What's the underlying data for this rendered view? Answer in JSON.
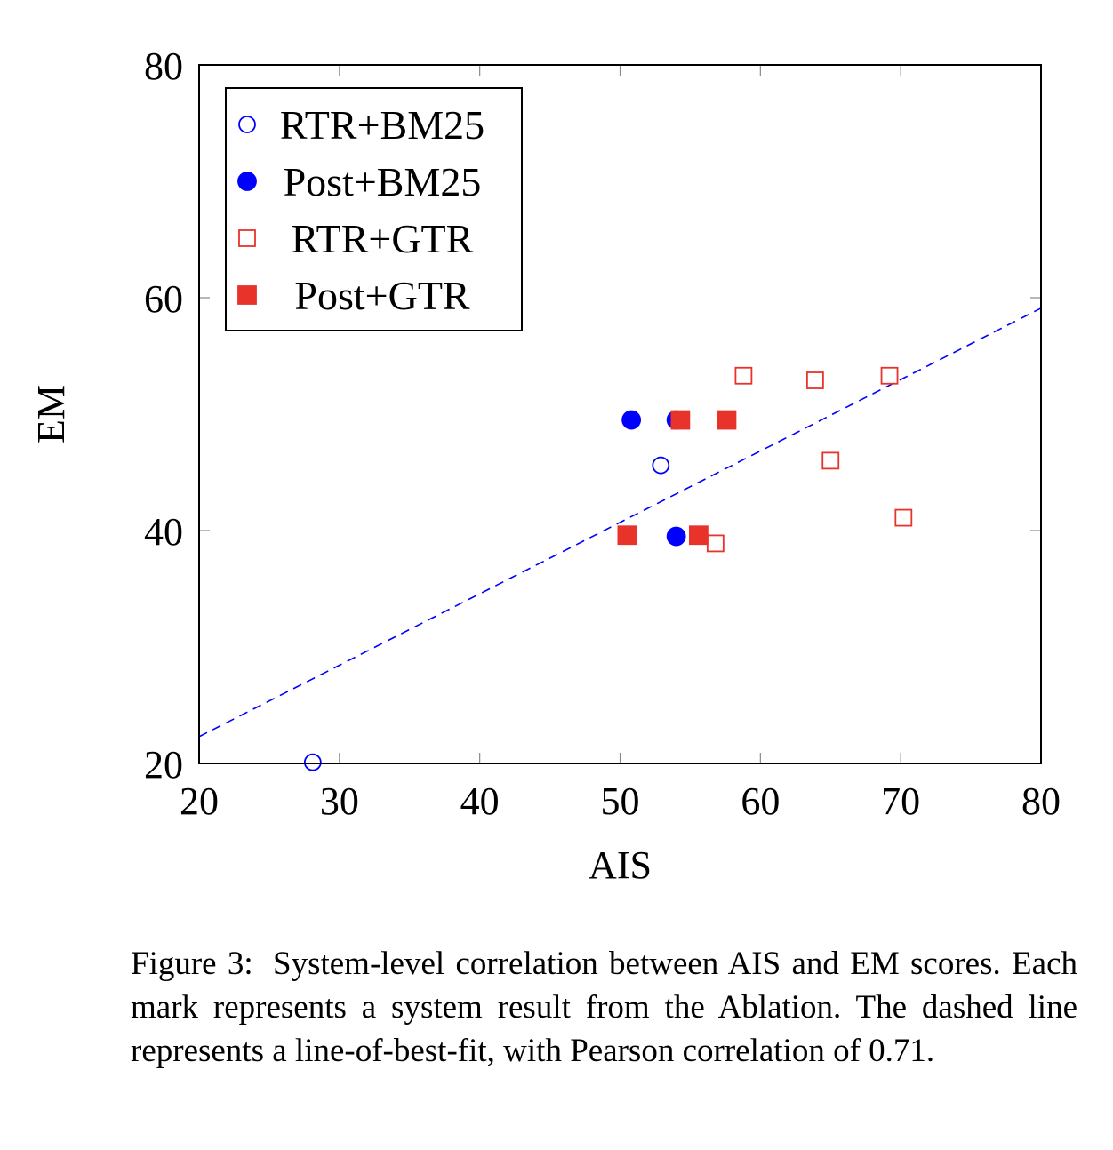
{
  "chart_data": {
    "type": "scatter",
    "xlabel": "AIS",
    "ylabel": "EM",
    "xlim": [
      20,
      80
    ],
    "ylim": [
      20,
      80
    ],
    "xticks": [
      20,
      30,
      40,
      50,
      60,
      70,
      80
    ],
    "yticks": [
      20,
      40,
      60,
      80
    ],
    "grid": false,
    "legend_position": "top-left",
    "series": [
      {
        "name": "RTR+BM25",
        "marker": "circle",
        "filled": false,
        "color": "#0000ff",
        "points": [
          [
            28.1,
            20.1
          ],
          [
            52.9,
            45.6
          ]
        ]
      },
      {
        "name": "Post+BM25",
        "marker": "circle",
        "filled": true,
        "color": "#0000ff",
        "points": [
          [
            50.8,
            49.5
          ],
          [
            54.0,
            49.5
          ],
          [
            54.0,
            39.5
          ]
        ]
      },
      {
        "name": "RTR+GTR",
        "marker": "square",
        "filled": false,
        "color": "#e8332a",
        "points": [
          [
            58.8,
            53.3
          ],
          [
            63.9,
            52.9
          ],
          [
            69.2,
            53.3
          ],
          [
            65.0,
            46.0
          ],
          [
            70.2,
            41.1
          ],
          [
            56.8,
            38.9
          ]
        ]
      },
      {
        "name": "Post+GTR",
        "marker": "square",
        "filled": true,
        "color": "#e8332a",
        "points": [
          [
            50.5,
            39.6
          ],
          [
            54.3,
            49.5
          ],
          [
            57.6,
            49.5
          ],
          [
            55.6,
            39.6
          ]
        ]
      }
    ],
    "fit_line": {
      "style": "dashed",
      "color": "#0000ff",
      "points": [
        [
          20,
          22.3
        ],
        [
          80,
          59.1
        ]
      ]
    }
  },
  "caption": {
    "label": "Figure 3:",
    "text": "System-level correlation between AIS and EM scores. Each mark represents a system result from the Ablation. The dashed line represents a line-of-best-fit, with Pearson correlation of 0.71."
  }
}
